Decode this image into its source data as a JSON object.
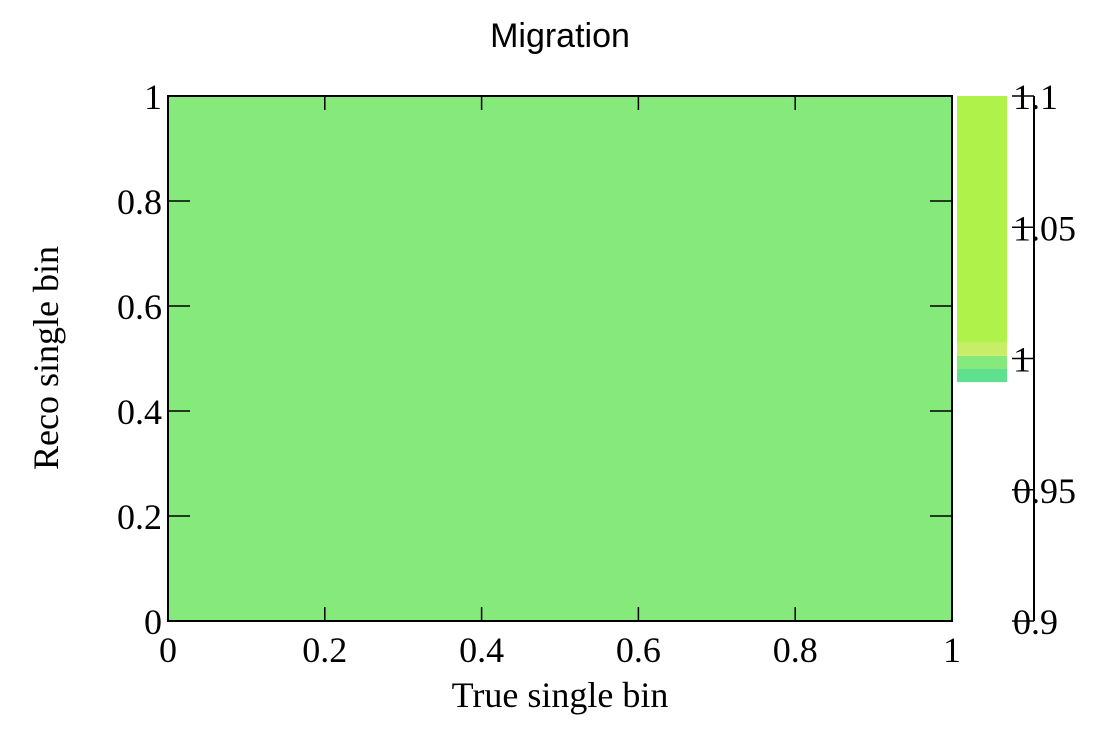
{
  "chart_data": {
    "type": "heatmap",
    "title": "Migration",
    "xlabel": "True single bin",
    "ylabel": "Reco single bin",
    "xlim": [
      0,
      1
    ],
    "ylim": [
      0,
      1
    ],
    "x_ticks": [
      "0",
      "0.2",
      "0.4",
      "0.6",
      "0.8",
      "1"
    ],
    "y_ticks": [
      "0",
      "0.2",
      "0.4",
      "0.6",
      "0.8",
      "1"
    ],
    "cells": [
      {
        "x_range": [
          0,
          1
        ],
        "y_range": [
          0,
          1
        ],
        "value": 1.0,
        "color": "#86e97c"
      }
    ],
    "colorbar": {
      "range": [
        0.9,
        1.1
      ],
      "ticks": [
        "0.9",
        "0.95",
        "1",
        "1.05",
        "1.1"
      ],
      "segments": [
        {
          "from": 0.991,
          "to": 0.996,
          "color": "#5fe08f"
        },
        {
          "from": 0.996,
          "to": 1.001,
          "color": "#86e97c"
        },
        {
          "from": 1.001,
          "to": 1.006,
          "color": "#c8ed69"
        },
        {
          "from": 1.006,
          "to": 1.1,
          "color": "#aef24a"
        }
      ]
    }
  }
}
